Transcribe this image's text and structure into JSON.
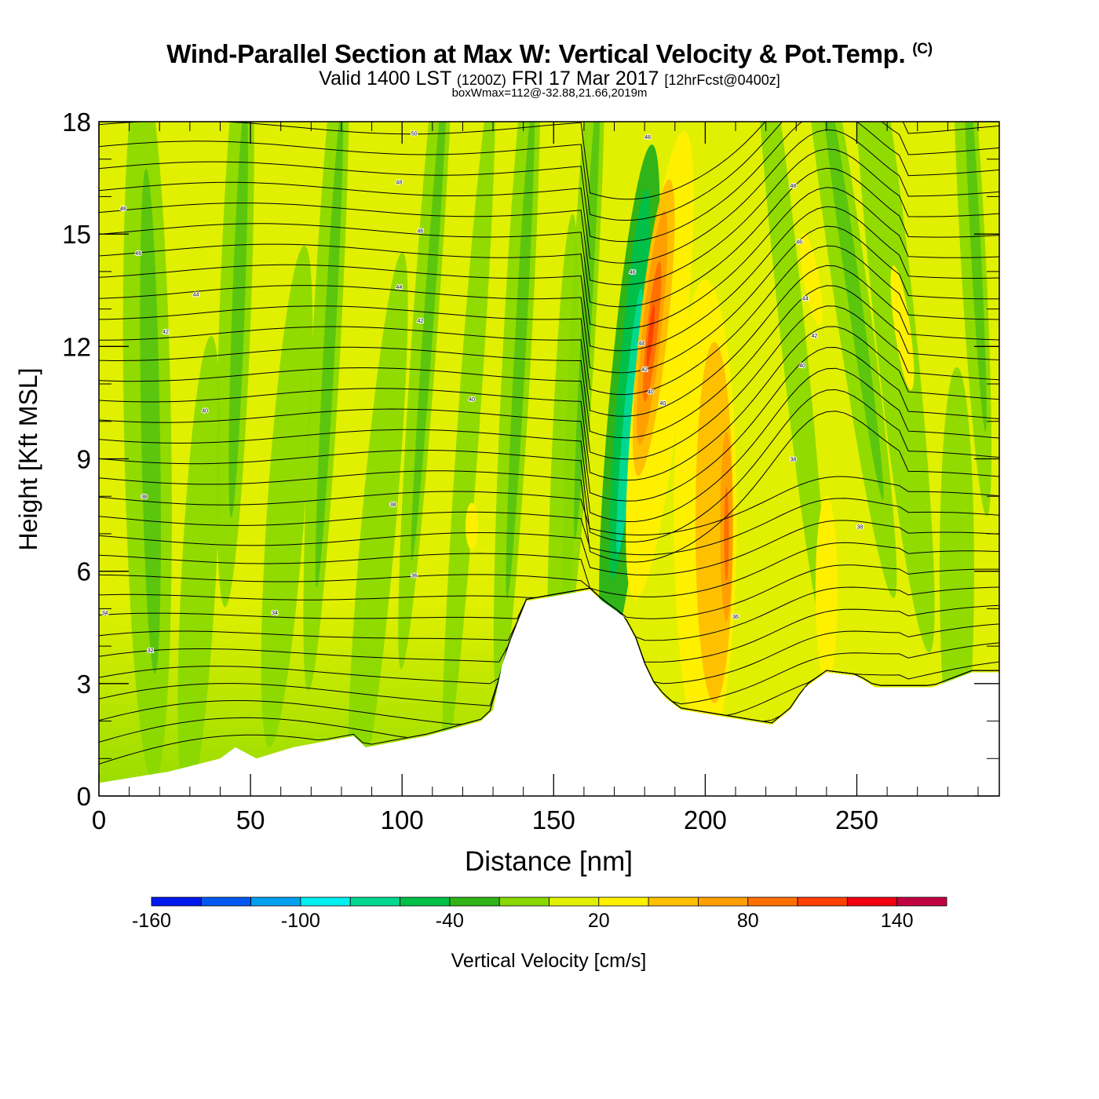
{
  "header": {
    "title": "Wind-Parallel Section at Max W: Vertical Velocity & Pot.Temp.",
    "copyright": "(C)",
    "valid_prefix": "Valid 1400 LST",
    "valid_zulu": "(1200Z)",
    "valid_date": "FRI 17 Mar 2017",
    "forecast": "[12hrFcst@0400z]",
    "box_info": "boxWmax=112@-32.88,21.66,2019m"
  },
  "chart_data": {
    "type": "heatmap",
    "title": "Wind-Parallel Section at Max W: Vertical Velocity & Pot.Temp.",
    "xlabel": "Distance [nm]",
    "ylabel": "Height [Kft MSL]",
    "xlim": [
      0,
      297
    ],
    "ylim": [
      0,
      18
    ],
    "x_ticks": [
      0,
      50,
      100,
      150,
      200,
      250
    ],
    "x_tick_labels": [
      "0",
      "50",
      "100",
      "150",
      "200",
      "250"
    ],
    "y_ticks": [
      0,
      3,
      6,
      9,
      12,
      15,
      18
    ],
    "y_tick_labels": [
      "0",
      "3",
      "6",
      "9",
      "12",
      "15",
      "18"
    ],
    "colorbar": {
      "label": "Vertical Velocity [cm/s]",
      "min": -160,
      "max": 160,
      "step": 20,
      "colors": [
        "#0018f0",
        "#0058f0",
        "#00a0f0",
        "#00f0f0",
        "#00d890",
        "#00c048",
        "#30b418",
        "#88d800",
        "#e0f000",
        "#fff000",
        "#ffc000",
        "#ffa000",
        "#ff7000",
        "#ff4000",
        "#f00010",
        "#c00040"
      ],
      "tick_values": [
        -160,
        -100,
        -40,
        20,
        80,
        140
      ],
      "tick_labels": [
        "-160",
        "-100",
        "-40",
        "20",
        "80",
        "140"
      ]
    },
    "terrain": [
      [
        0,
        0.35
      ],
      [
        23,
        0.65
      ],
      [
        40,
        1.0
      ],
      [
        45,
        1.3
      ],
      [
        52,
        1.0
      ],
      [
        64,
        1.3
      ],
      [
        84,
        1.6
      ],
      [
        88,
        1.3
      ],
      [
        108,
        1.6
      ],
      [
        126,
        2.0
      ],
      [
        130,
        2.3
      ],
      [
        133,
        3.5
      ],
      [
        136,
        4.2
      ],
      [
        141,
        5.2
      ],
      [
        162,
        5.5
      ],
      [
        166,
        5.2
      ],
      [
        173,
        4.8
      ],
      [
        177,
        4.2
      ],
      [
        180,
        3.5
      ],
      [
        183,
        3.0
      ],
      [
        187,
        2.6
      ],
      [
        192,
        2.3
      ],
      [
        222,
        1.9
      ],
      [
        228,
        2.3
      ],
      [
        233,
        2.9
      ],
      [
        240,
        3.3
      ],
      [
        250,
        3.2
      ],
      [
        256,
        2.9
      ],
      [
        275,
        2.9
      ],
      [
        288,
        3.3
      ],
      [
        297,
        3.3
      ]
    ],
    "isentrope_labels": [
      {
        "x": 104,
        "y": 17.7,
        "text": "50"
      },
      {
        "x": 99,
        "y": 16.4,
        "text": "48"
      },
      {
        "x": 8,
        "y": 15.7,
        "text": "48"
      },
      {
        "x": 106,
        "y": 15.1,
        "text": "46"
      },
      {
        "x": 13,
        "y": 14.5,
        "text": "46"
      },
      {
        "x": 99,
        "y": 13.6,
        "text": "44"
      },
      {
        "x": 32,
        "y": 13.4,
        "text": "44"
      },
      {
        "x": 106,
        "y": 12.7,
        "text": "42"
      },
      {
        "x": 22,
        "y": 12.4,
        "text": "42"
      },
      {
        "x": 123,
        "y": 10.6,
        "text": "40"
      },
      {
        "x": 35,
        "y": 10.3,
        "text": "40"
      },
      {
        "x": 15,
        "y": 8.0,
        "text": "38"
      },
      {
        "x": 97,
        "y": 7.8,
        "text": "38"
      },
      {
        "x": 104,
        "y": 5.9,
        "text": "36"
      },
      {
        "x": 2,
        "y": 4.9,
        "text": "34"
      },
      {
        "x": 58,
        "y": 4.9,
        "text": "34"
      },
      {
        "x": 17,
        "y": 3.9,
        "text": "32"
      },
      {
        "x": 181,
        "y": 17.6,
        "text": "48"
      },
      {
        "x": 229,
        "y": 16.3,
        "text": "48"
      },
      {
        "x": 231,
        "y": 14.8,
        "text": "46"
      },
      {
        "x": 176,
        "y": 14.0,
        "text": "46"
      },
      {
        "x": 233,
        "y": 13.3,
        "text": "44"
      },
      {
        "x": 179,
        "y": 12.1,
        "text": "44"
      },
      {
        "x": 236,
        "y": 12.3,
        "text": "42"
      },
      {
        "x": 180,
        "y": 11.4,
        "text": "42"
      },
      {
        "x": 232,
        "y": 11.5,
        "text": "40"
      },
      {
        "x": 182,
        "y": 10.8,
        "text": "40"
      },
      {
        "x": 186,
        "y": 10.5,
        "text": "40"
      },
      {
        "x": 229,
        "y": 9.0,
        "text": "38"
      },
      {
        "x": 251,
        "y": 7.2,
        "text": "38"
      },
      {
        "x": 210,
        "y": 4.8,
        "text": "36"
      }
    ]
  }
}
